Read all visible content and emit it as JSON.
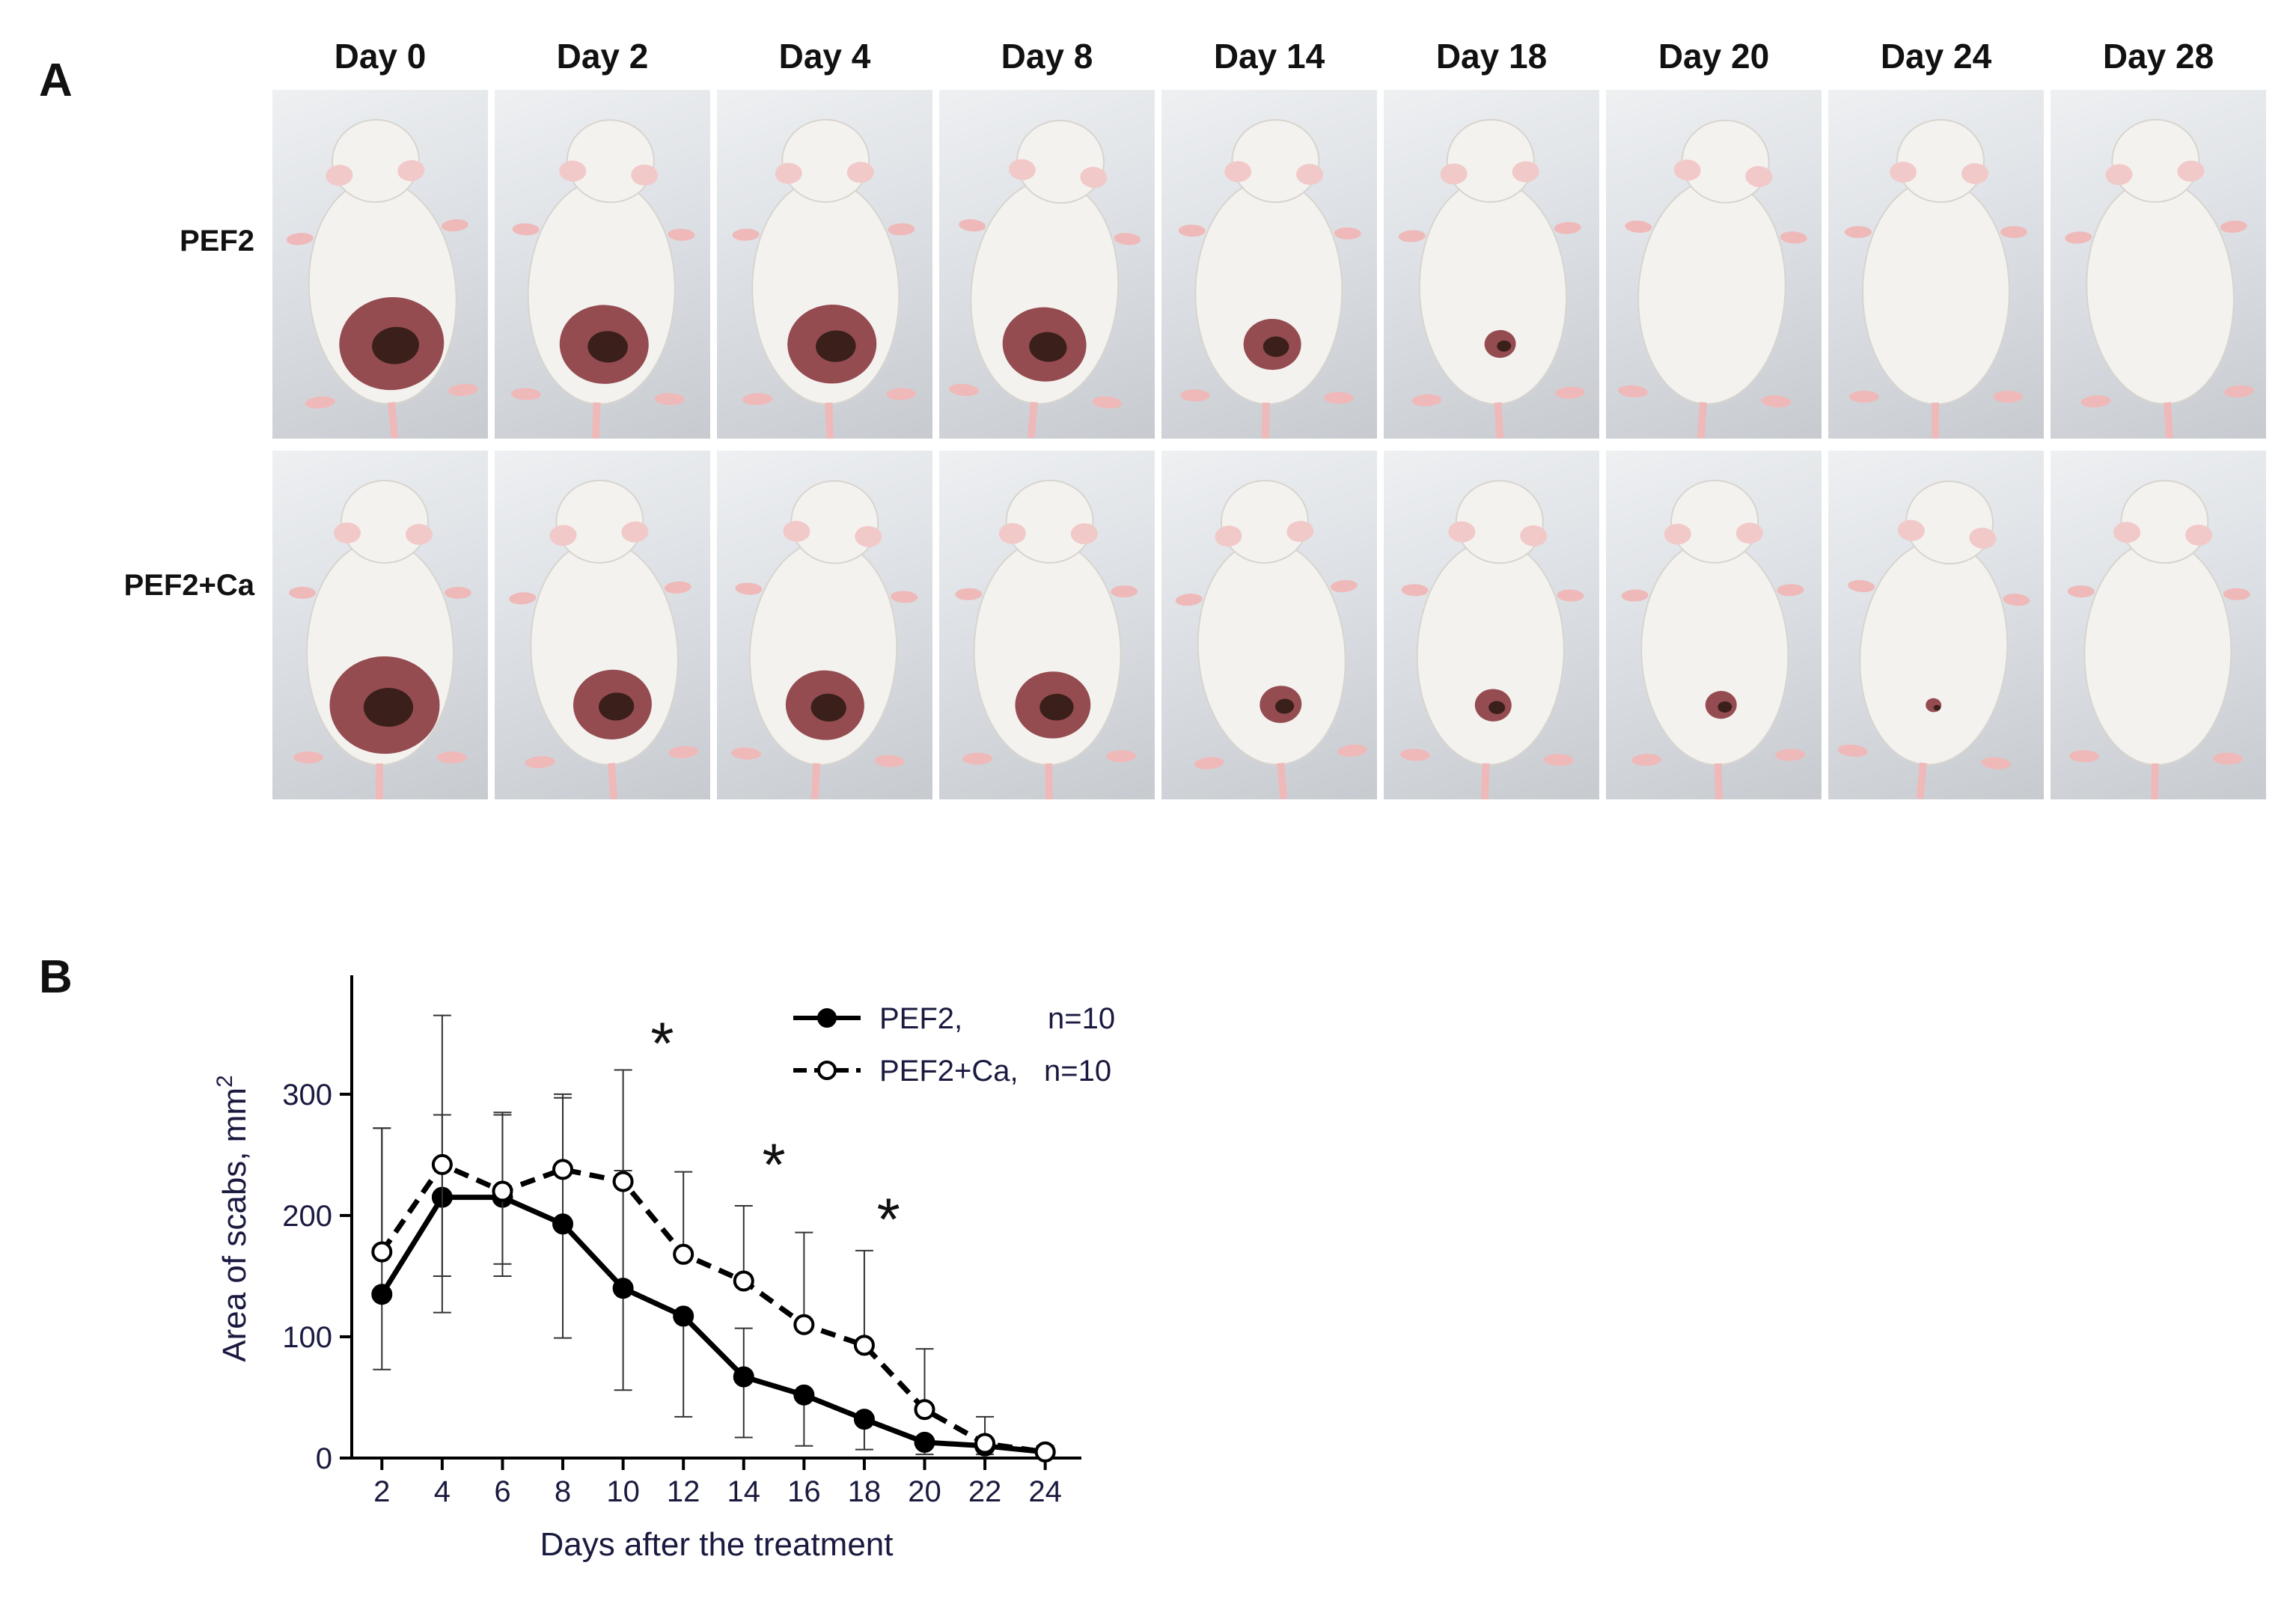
{
  "panel_a": {
    "letter": "A",
    "columns": [
      "Day 0",
      "Day 2",
      "Day 4",
      "Day 8",
      "Day 14",
      "Day 18",
      "Day 20",
      "Day 24",
      "Day 28"
    ],
    "rows": [
      "PEF2",
      "PEF2+Ca"
    ],
    "wound_size": [
      [
        1.0,
        0.85,
        0.85,
        0.8,
        0.55,
        0.3,
        0.0,
        0.0,
        0.0
      ],
      [
        1.05,
        0.75,
        0.75,
        0.72,
        0.4,
        0.35,
        0.3,
        0.15,
        0.0
      ]
    ],
    "colors": {
      "fur": "#f4f2ef",
      "wound": "#8a3a3f",
      "scab": "#3a1f1a",
      "background": "#d6dade"
    }
  },
  "panel_b": {
    "letter": "B"
  },
  "chart_data": {
    "type": "line",
    "xlabel": "Days after the treatment",
    "ylabel": "Area of scabs, mm",
    "ylabel_superscript": "2",
    "x": [
      2,
      4,
      6,
      8,
      10,
      12,
      14,
      16,
      18,
      20,
      22,
      24
    ],
    "xticks": [
      2,
      4,
      6,
      8,
      10,
      12,
      14,
      16,
      18,
      20,
      22,
      24
    ],
    "yticks": [
      0,
      100,
      200,
      300
    ],
    "xlim": [
      1.0,
      25.2
    ],
    "ylim": [
      0,
      395
    ],
    "series": [
      {
        "name": "PEF2,",
        "n_label": "n=10",
        "style": "solid",
        "marker": "filled",
        "values": [
          135,
          215,
          215,
          193,
          140,
          117,
          67,
          52,
          32,
          13,
          10,
          5
        ],
        "err_low": [
          62,
          65,
          65,
          94,
          84,
          83,
          50,
          42,
          25,
          10,
          7,
          3
        ],
        "err_high": [
          137,
          68,
          68,
          104,
          97,
          0,
          40,
          0,
          0,
          0,
          0,
          0
        ]
      },
      {
        "name": "PEF2+Ca,",
        "n_label": "n=10",
        "style": "dashed",
        "marker": "open",
        "values": [
          170,
          242,
          220,
          238,
          228,
          168,
          146,
          110,
          93,
          40,
          12,
          5
        ],
        "err_low": [
          0,
          122,
          60,
          0,
          0,
          0,
          0,
          0,
          0,
          0,
          0,
          0
        ],
        "err_high": [
          102,
          123,
          65,
          62,
          92,
          68,
          62,
          76,
          78,
          50,
          22,
          5
        ]
      }
    ],
    "annotations": [
      {
        "text": "*",
        "x": 11.3,
        "y": 325
      },
      {
        "text": "*",
        "x": 15.0,
        "y": 225
      },
      {
        "text": "*",
        "x": 18.8,
        "y": 180
      }
    ],
    "legend": "top-right"
  }
}
